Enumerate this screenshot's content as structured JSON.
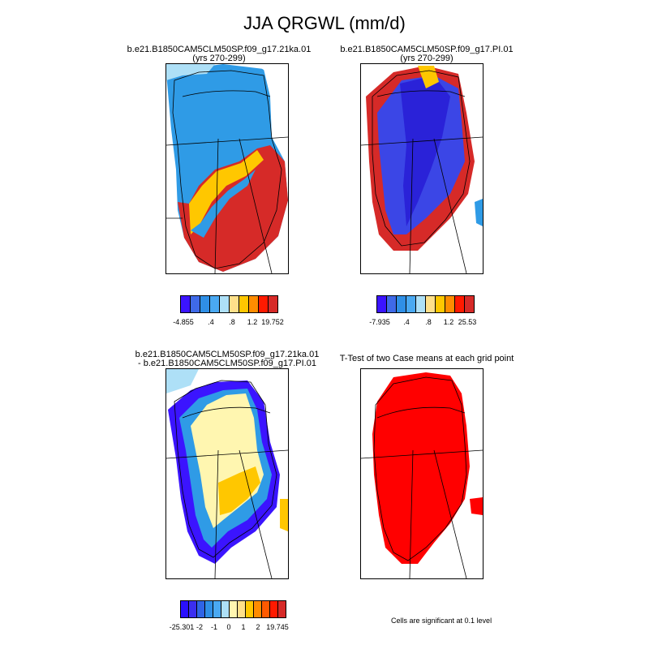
{
  "title": "JJA QRGWL (mm/d)",
  "panels": [
    {
      "line1": "b.e21.B1850CAM5CLM50SP.f09_g17.21ka.01",
      "line2": "(yrs 270-299)"
    },
    {
      "line1": "b.e21.B1850CAM5CLM50SP.f09_g17.PI.01",
      "line2": "(yrs 270-299)"
    },
    {
      "line1": "b.e21.B1850CAM5CLM50SP.f09_g17.21ka.01",
      "line2": "- b.e21.B1850CAM5CLM50SP.f09_g17.PI.01"
    },
    {
      "line1": "T-Test of two Case means at each grid point",
      "line2": ""
    }
  ],
  "colorbars": [
    {
      "colors": [
        "#3b14ff",
        "#3f6ae8",
        "#2f8fe6",
        "#4aa9f2",
        "#aee0f7",
        "#ffe08a",
        "#ffc700",
        "#ff8c00",
        "#ff1a00",
        "#d62a28"
      ],
      "labels": [
        "-4.855",
        ".4",
        ".8",
        "1.2",
        "19.752"
      ]
    },
    {
      "colors": [
        "#3b14ff",
        "#3f6ae8",
        "#2f8fe6",
        "#4aa9f2",
        "#aee0f7",
        "#ffe08a",
        "#ffc700",
        "#ff8c00",
        "#ff1a00",
        "#d62a28"
      ],
      "labels": [
        "-7.935",
        ".4",
        ".8",
        "1.2",
        "25.53"
      ]
    },
    {
      "colors": [
        "#2a10ff",
        "#3b2ef0",
        "#2f64e6",
        "#2f8fe6",
        "#4aa9f2",
        "#aee0f7",
        "#fff6b0",
        "#ffe08a",
        "#ffc700",
        "#ff8c00",
        "#ff5a00",
        "#ff1a00",
        "#d62a28"
      ],
      "labels": [
        "-25.301",
        "-2",
        "-1",
        "0",
        "1",
        "2",
        "19.745"
      ]
    }
  ],
  "note": "Cells are significant at 0.1 level",
  "colors": {
    "blue_light": "#2f9be6",
    "dark_blue": "#3b46e6",
    "red": "#d62a28",
    "orange": "#ffc700",
    "yellow": "#fff6b0",
    "sig_red": "#ff0000"
  }
}
